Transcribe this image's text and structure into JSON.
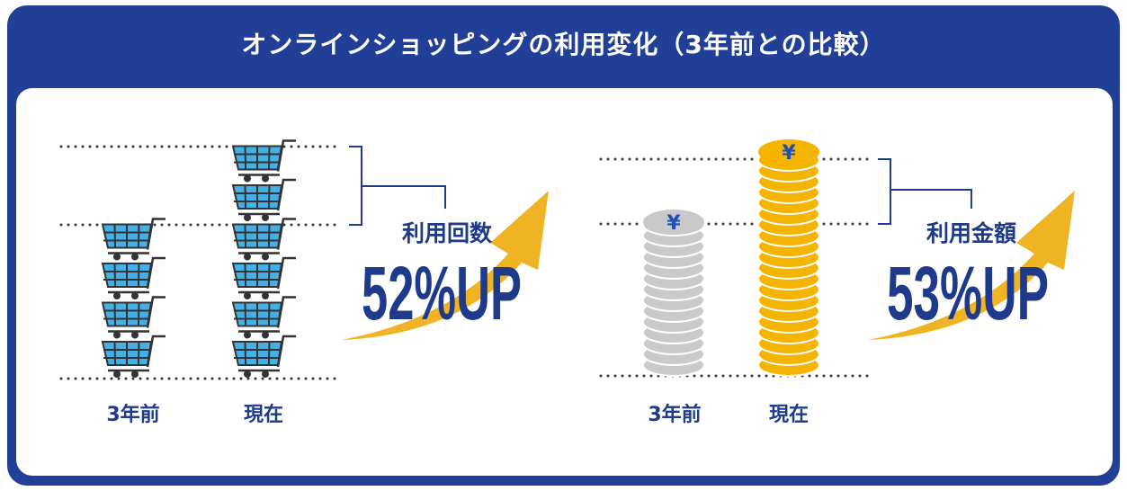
{
  "title": "オンラインショッピングの利用変化（3年前との比較）",
  "usage_count": {
    "label": "利用回数",
    "value": "52%UP",
    "before_label": "3年前",
    "now_label": "現在",
    "before_icon_count": 4,
    "now_icon_count": 6,
    "icon": "shopping-cart-icon"
  },
  "usage_amount": {
    "label": "利用金額",
    "value": "53%UP",
    "before_label": "3年前",
    "now_label": "現在",
    "icon": "yen-coin-stack-icon",
    "currency_symbol": "¥"
  },
  "colors": {
    "frame": "#213f97",
    "text": "#1f3a8a",
    "arrow": "#f0b323",
    "cart": "#45b0e6",
    "coin_before": "#c9c9c9",
    "coin_now": "#f5b400"
  }
}
